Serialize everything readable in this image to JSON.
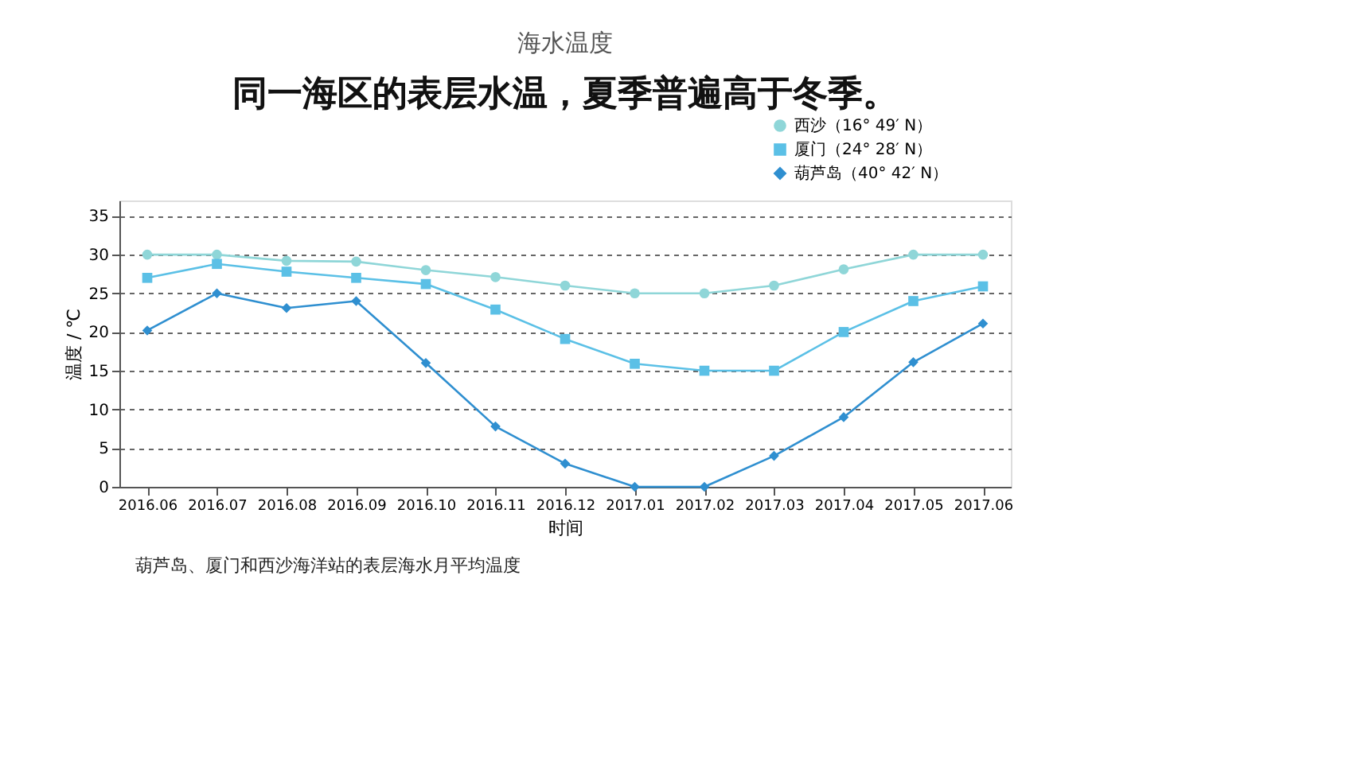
{
  "chart_data": {
    "type": "line",
    "title": "海水温度",
    "subtitle": "同一海区的表层水温，夏季普遍高于冬季。",
    "xlabel": "时间",
    "ylabel": "温度 / ℃",
    "categories": [
      "2016.06",
      "2016.07",
      "2016.08",
      "2016.09",
      "2016.10",
      "2016.11",
      "2016.12",
      "2017.01",
      "2017.02",
      "2017.03",
      "2017.04",
      "2017.05",
      "2017.06"
    ],
    "series": [
      {
        "name": "西沙（16° 49′ N）",
        "color": "#8fd6d8",
        "marker": "circle",
        "values": [
          30,
          30,
          29.2,
          29.1,
          28,
          27.1,
          26,
          25,
          25,
          26,
          28.1,
          30,
          30
        ]
      },
      {
        "name": "厦门（24° 28′ N）",
        "color": "#5bc0e6",
        "marker": "square",
        "values": [
          27,
          28.8,
          27.8,
          27,
          26.2,
          22.9,
          19.1,
          15.9,
          15,
          15,
          20,
          24,
          25.9
        ]
      },
      {
        "name": "葫芦岛（40° 42′ N）",
        "color": "#2f8fd0",
        "marker": "diamond",
        "values": [
          20.2,
          25,
          23.1,
          24,
          16,
          7.8,
          3,
          0,
          0,
          4,
          9,
          16.1,
          21.1
        ]
      }
    ],
    "ylim": [
      0,
      37
    ],
    "yticks": [
      0,
      5,
      10,
      15,
      20,
      25,
      30,
      35
    ],
    "grid": "y",
    "legend": "top right",
    "line_style": "solid",
    "annotations": [
      "葫芦岛、厦门和西沙海洋站的表层海水月平均温度"
    ]
  }
}
